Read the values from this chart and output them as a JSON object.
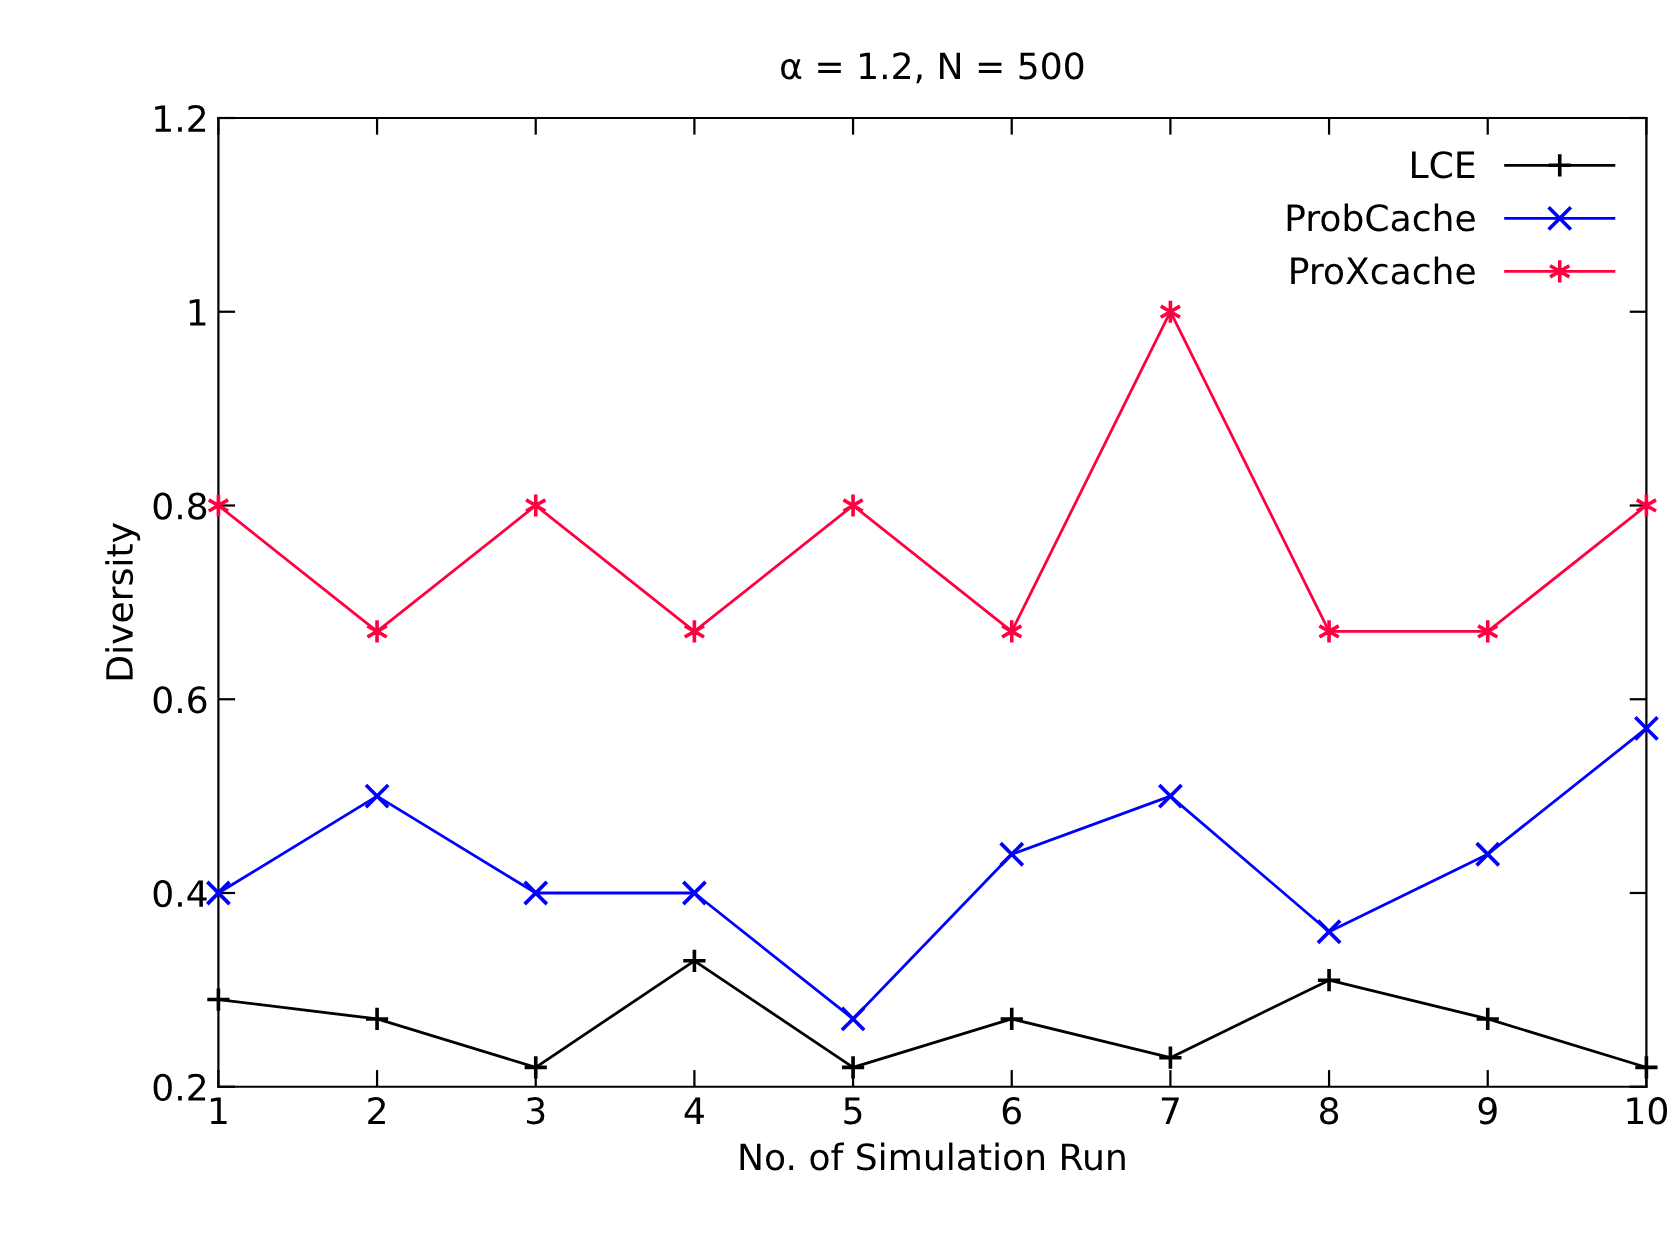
{
  "chart_data": {
    "type": "line",
    "title": "α = 1.2, N = 500",
    "xlabel": "No. of Simulation Run",
    "ylabel": "Diversity",
    "x": [
      1,
      2,
      3,
      4,
      5,
      6,
      7,
      8,
      9,
      10
    ],
    "series": [
      {
        "name": "LCE",
        "color": "#000000",
        "marker": "cross",
        "values": [
          0.29,
          0.27,
          0.22,
          0.33,
          0.22,
          0.27,
          0.23,
          0.31,
          0.27,
          0.22
        ]
      },
      {
        "name": "ProbCache",
        "color": "#0000ff",
        "marker": "cross",
        "values": [
          0.4,
          0.5,
          0.4,
          0.4,
          0.27,
          0.44,
          0.5,
          0.36,
          0.44,
          0.57
        ]
      },
      {
        "name": "ProXcache",
        "color": "#ff0040",
        "marker": "cross",
        "values": [
          0.8,
          0.67,
          0.8,
          0.67,
          0.8,
          0.67,
          1.0,
          0.67,
          0.67,
          0.8
        ]
      }
    ],
    "xlim": [
      1,
      10
    ],
    "xticks": [
      1,
      2,
      3,
      4,
      5,
      6,
      7,
      8,
      9,
      10
    ],
    "ylim": [
      0.2,
      1.2
    ],
    "yticks": [
      0.2,
      0.4,
      0.6,
      0.8,
      1,
      1.2
    ],
    "grid": false,
    "legend": "top right",
    "line_style": "solid"
  }
}
